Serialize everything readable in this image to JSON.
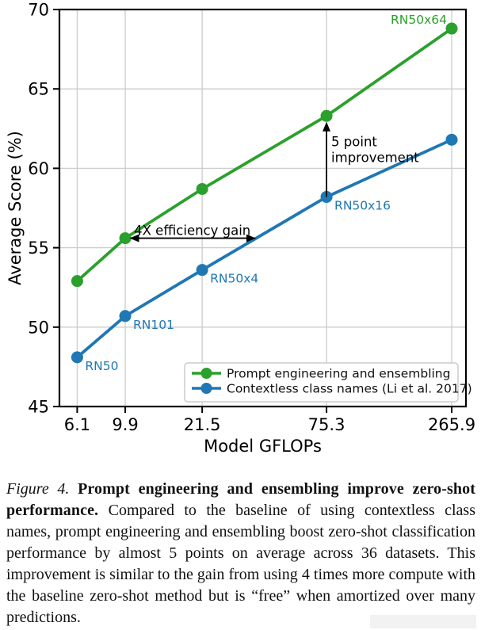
{
  "figure": {
    "caption": {
      "segments": [
        {
          "style": "italic",
          "text": "Figure 4. "
        },
        {
          "style": "bold",
          "text": "Prompt engineering and ensembling improve zero-shot performance. "
        },
        {
          "style": "normal",
          "text": "Compared to the baseline of using contextless class names, prompt engineering and ensembling boost zero-shot classification performance by almost 5 points on average across 36 datasets. This improvement is similar to the gain from using 4 times more compute with the baseline zero-shot method but is “free” when amortized over many predictions."
        }
      ]
    }
  },
  "chart_data": {
    "type": "line",
    "title": "",
    "xlabel": "Model GFLOPs",
    "ylabel": "Average Score (%)",
    "x_scale": "log",
    "xlim": [
      5.1,
      307
    ],
    "ylim": [
      45,
      70
    ],
    "grid": true,
    "x_ticks": [
      6.1,
      9.9,
      21.5,
      75.3,
      265.9
    ],
    "x_tick_labels": [
      "6.1",
      "9.9",
      "21.5",
      "75.3",
      "265.9"
    ],
    "y_ticks": [
      45,
      50,
      55,
      60,
      65,
      70
    ],
    "y_tick_labels": [
      "45",
      "50",
      "55",
      "60",
      "65",
      "70"
    ],
    "x": [
      6.1,
      9.9,
      21.5,
      75.3,
      265.9
    ],
    "series": [
      {
        "name": "Prompt engineering and ensembling",
        "color": "#2ca02c",
        "values": [
          52.9,
          55.6,
          58.7,
          63.3,
          68.8
        ]
      },
      {
        "name": "Contextless class names (Li et al. 2017)",
        "color": "#1f77b4",
        "values": [
          48.1,
          50.7,
          53.6,
          58.2,
          61.8
        ]
      }
    ],
    "point_labels": [
      {
        "text": "RN50",
        "x": 6.1,
        "y": 48.1,
        "color": "#1f77b4",
        "placement": "below-right"
      },
      {
        "text": "RN101",
        "x": 9.9,
        "y": 50.7,
        "color": "#1f77b4",
        "placement": "below-right"
      },
      {
        "text": "RN50x4",
        "x": 21.5,
        "y": 53.6,
        "color": "#1f77b4",
        "placement": "below-right"
      },
      {
        "text": "RN50x16",
        "x": 75.3,
        "y": 58.2,
        "color": "#1f77b4",
        "placement": "below-right"
      },
      {
        "text": "RN50x64",
        "x": 265.9,
        "y": 68.8,
        "color": "#2ca02c",
        "placement": "above-left"
      }
    ],
    "annotations": [
      {
        "id": "efficiency-gain",
        "text": "4X efficiency gain",
        "type": "double-arrow-horizontal",
        "from_x": 9.9,
        "to_x": 36.5,
        "y": 55.6
      },
      {
        "id": "point-improvement",
        "lines": [
          "5 point",
          "improvement"
        ],
        "type": "arrow-up-vertical",
        "x": 75.3,
        "from_y": 58.2,
        "to_y": 63.3
      }
    ],
    "legend": {
      "position": "lower right",
      "entries": [
        "Prompt engineering and ensembling",
        "Contextless class names (Li et al. 2017)"
      ]
    },
    "colors": {
      "axis": "#000000",
      "grid": "#cccccc",
      "legend_border": "#cccccc",
      "annotation": "#000000"
    }
  }
}
